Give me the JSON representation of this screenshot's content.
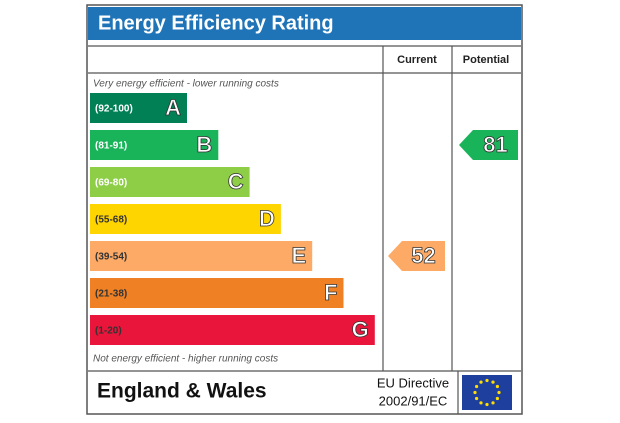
{
  "header": {
    "title": "Energy Efficiency Rating"
  },
  "columns": {
    "current": "Current",
    "potential": "Potential"
  },
  "top_note": "Very energy efficient - lower running costs",
  "bottom_note": "Not energy efficient - higher running costs",
  "bands": [
    {
      "range": "(92-100)",
      "letter": "A",
      "color": "#008054"
    },
    {
      "range": "(81-91)",
      "letter": "B",
      "color": "#19b459"
    },
    {
      "range": "(69-80)",
      "letter": "C",
      "color": "#8dce46"
    },
    {
      "range": "(55-68)",
      "letter": "D",
      "color": "#ffd500"
    },
    {
      "range": "(39-54)",
      "letter": "E",
      "color": "#fcaa65"
    },
    {
      "range": "(21-38)",
      "letter": "F",
      "color": "#ef8023"
    },
    {
      "range": "(1-20)",
      "letter": "G",
      "color": "#e9153b"
    }
  ],
  "current": {
    "value": 52
  },
  "potential": {
    "value": 81
  },
  "footer": {
    "region": "England & Wales",
    "directive_line1": "EU Directive",
    "directive_line2": "2002/91/EC"
  }
}
